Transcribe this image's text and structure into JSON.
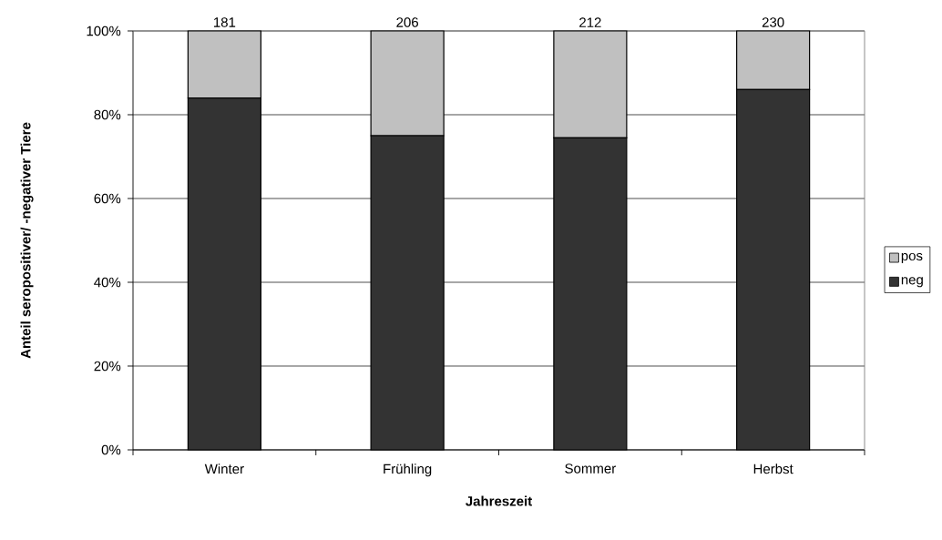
{
  "chart_data": {
    "type": "bar",
    "stacked": true,
    "xlabel": "Jahreszeit",
    "ylabel": "Anteil seropositiver/ -negativer Tiere",
    "categories": [
      "Winter",
      "Frühling",
      "Sommer",
      "Herbst"
    ],
    "series": [
      {
        "name": "neg",
        "color": "#333333",
        "values": [
          84,
          75,
          74.5,
          86
        ]
      },
      {
        "name": "pos",
        "color": "#c0c0c0",
        "values": [
          16,
          25,
          25.5,
          14
        ]
      }
    ],
    "ylim": [
      0,
      100
    ],
    "yticks": [
      {
        "value": 0,
        "label": "0%"
      },
      {
        "value": 20,
        "label": "20%"
      },
      {
        "value": 40,
        "label": "40%"
      },
      {
        "value": 60,
        "label": "60%"
      },
      {
        "value": 80,
        "label": "80%"
      },
      {
        "value": 100,
        "label": "100%"
      }
    ],
    "grid": "y",
    "legend": "right",
    "annotations": [
      {
        "text": "181",
        "x": "Winter",
        "y": 100
      },
      {
        "text": "206",
        "x": "Frühling",
        "y": 100
      },
      {
        "text": "212",
        "x": "Sommer",
        "y": 100
      },
      {
        "text": "230",
        "x": "Herbst",
        "y": 100
      }
    ]
  }
}
